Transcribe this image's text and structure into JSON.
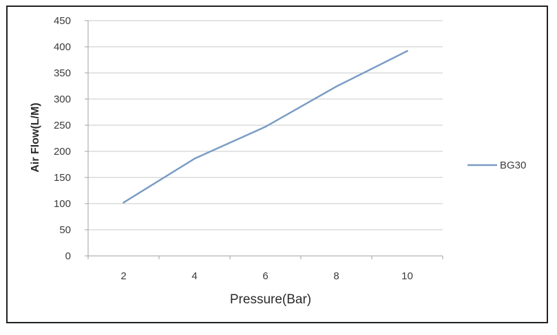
{
  "chart_data": {
    "type": "line",
    "x": [
      2,
      4,
      6,
      8,
      10
    ],
    "series": [
      {
        "name": "BG30",
        "values": [
          102,
          186,
          247,
          324,
          392
        ]
      }
    ],
    "xticks": [
      "2",
      "4",
      "6",
      "8",
      "10"
    ],
    "yticks": [
      "0",
      "50",
      "100",
      "150",
      "200",
      "250",
      "300",
      "350",
      "400",
      "450"
    ],
    "xlabel": "Pressure(Bar)",
    "ylabel": "Air Flow(L/M)",
    "ylim": [
      0,
      450
    ],
    "grid": "horizontal",
    "legend_position": "right",
    "colors": {
      "series": "#7a9cc4",
      "grid": "#c8c8c8",
      "axis": "#a0a0a0"
    }
  }
}
